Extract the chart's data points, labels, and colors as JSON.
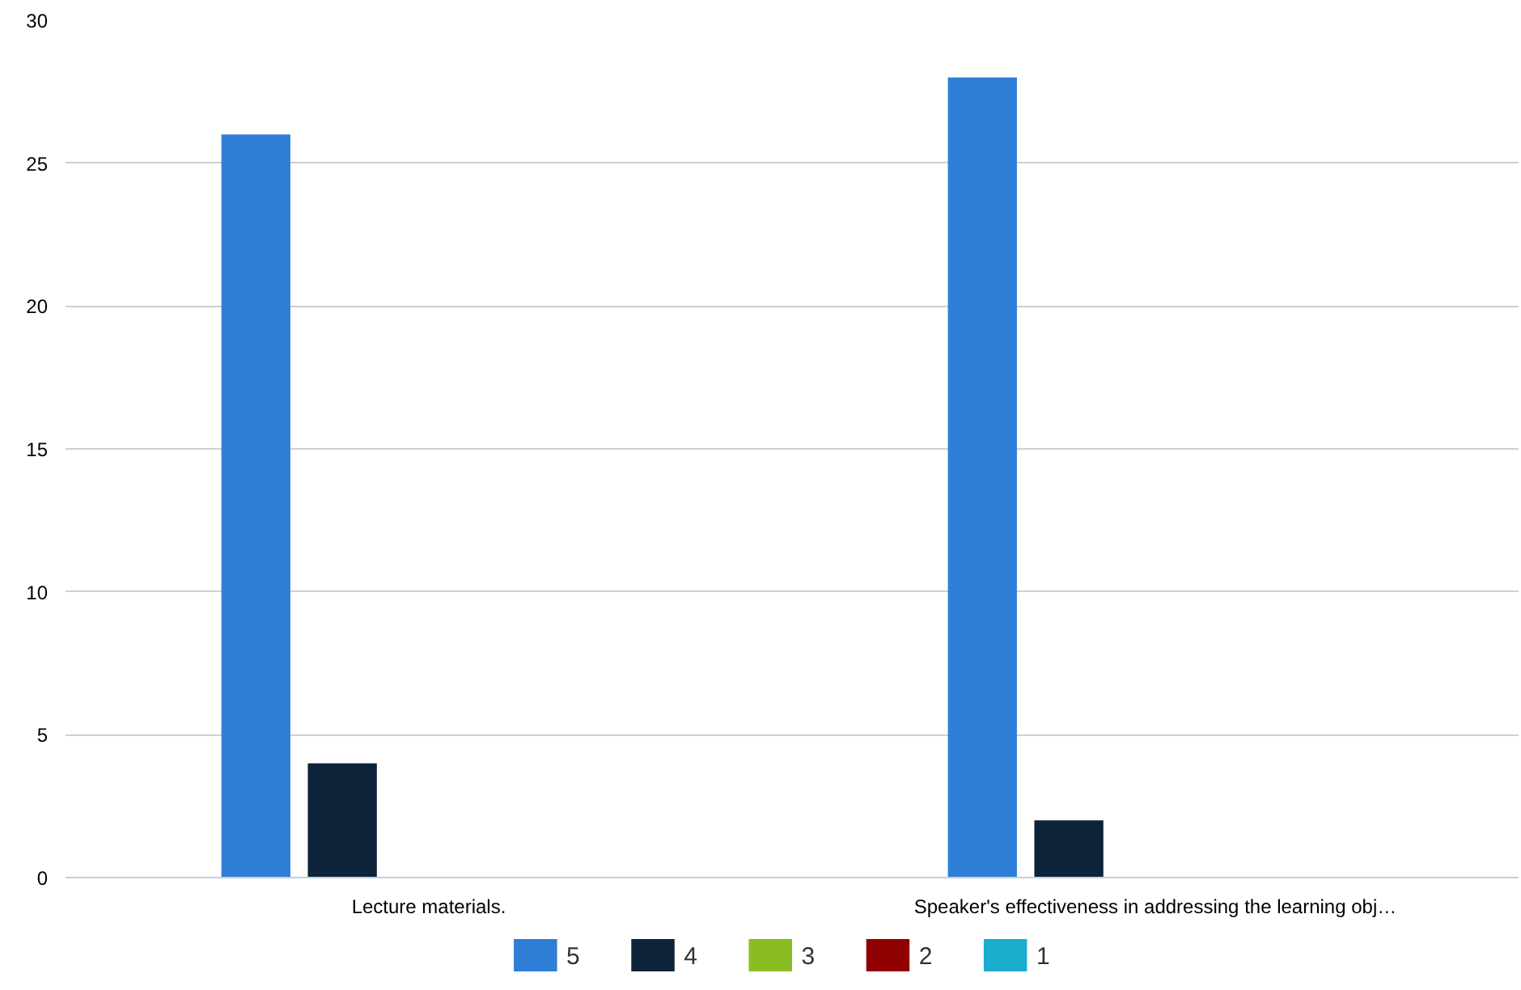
{
  "chart_data": {
    "type": "bar",
    "categories": [
      "Lecture materials.",
      "Speaker's effectiveness in addressing the learning obj…"
    ],
    "series": [
      {
        "name": "5",
        "color": "#2f7ed8",
        "values": [
          26,
          28
        ]
      },
      {
        "name": "4",
        "color": "#0d233a",
        "values": [
          4,
          2
        ]
      },
      {
        "name": "3",
        "color": "#8bbc21",
        "values": [
          0,
          0
        ]
      },
      {
        "name": "2",
        "color": "#910000",
        "values": [
          0,
          0
        ]
      },
      {
        "name": "1",
        "color": "#1aadce",
        "values": [
          0,
          0
        ]
      }
    ],
    "ylim": [
      0,
      30
    ],
    "yticks": [
      0,
      5,
      10,
      15,
      20,
      25,
      30
    ],
    "grid": "y",
    "legend": "bottom"
  }
}
